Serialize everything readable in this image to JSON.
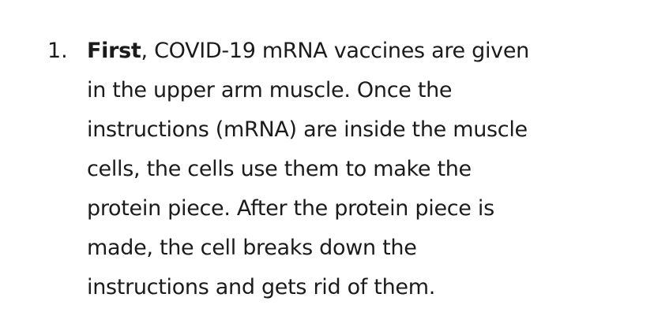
{
  "list": {
    "item1": {
      "marker": "1.",
      "lead_bold": "First",
      "line1_rest": ", COVID-19 mRNA vaccines are given",
      "line2": "in the upper arm muscle. Once the",
      "line3": "instructions (mRNA) are inside the muscle",
      "line4": "cells, the cells use them to make the",
      "line5": "protein piece. After the protein piece is",
      "line6": "made, the cell breaks down the",
      "line7": "instructions and gets rid of them."
    }
  }
}
